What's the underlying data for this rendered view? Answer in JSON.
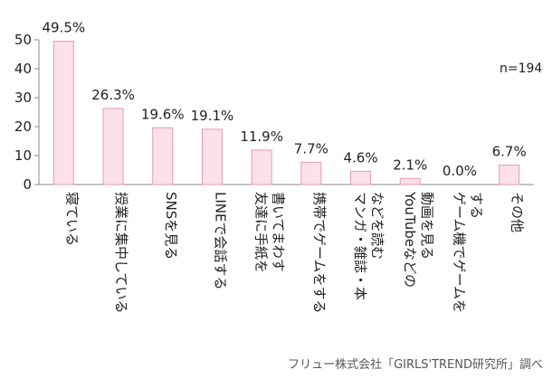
{
  "chart_data": {
    "type": "bar",
    "categories": [
      [
        "寝ている"
      ],
      [
        "授業に集中している"
      ],
      [
        "SNSを見る"
      ],
      [
        "LINEで会話する"
      ],
      [
        "友達に手紙を",
        "書いてまわす"
      ],
      [
        "携帯でゲームをする"
      ],
      [
        "マンガ・雑誌・本",
        "などを読む"
      ],
      [
        "YouTubeなどの",
        "動画を見る"
      ],
      [
        "ゲーム機でゲームを",
        "する"
      ],
      [
        "その他"
      ]
    ],
    "values": [
      49.5,
      26.3,
      19.6,
      19.1,
      11.9,
      7.7,
      4.6,
      2.1,
      0.0,
      6.7
    ],
    "value_labels": [
      "49.5%",
      "26.3%",
      "19.6%",
      "19.1%",
      "11.9%",
      "7.7%",
      "4.6%",
      "2.1%",
      "0.0%",
      "6.7%"
    ],
    "ylim": [
      0,
      50
    ],
    "yticks": [
      0,
      10,
      20,
      30,
      40,
      50
    ],
    "annotation": "n=194",
    "bar_fill": "#fde0ea",
    "bar_stroke": "#e89ab3",
    "grid": false
  },
  "footer": "フリュー株式会社「GIRLS'TREND研究所」調べ"
}
